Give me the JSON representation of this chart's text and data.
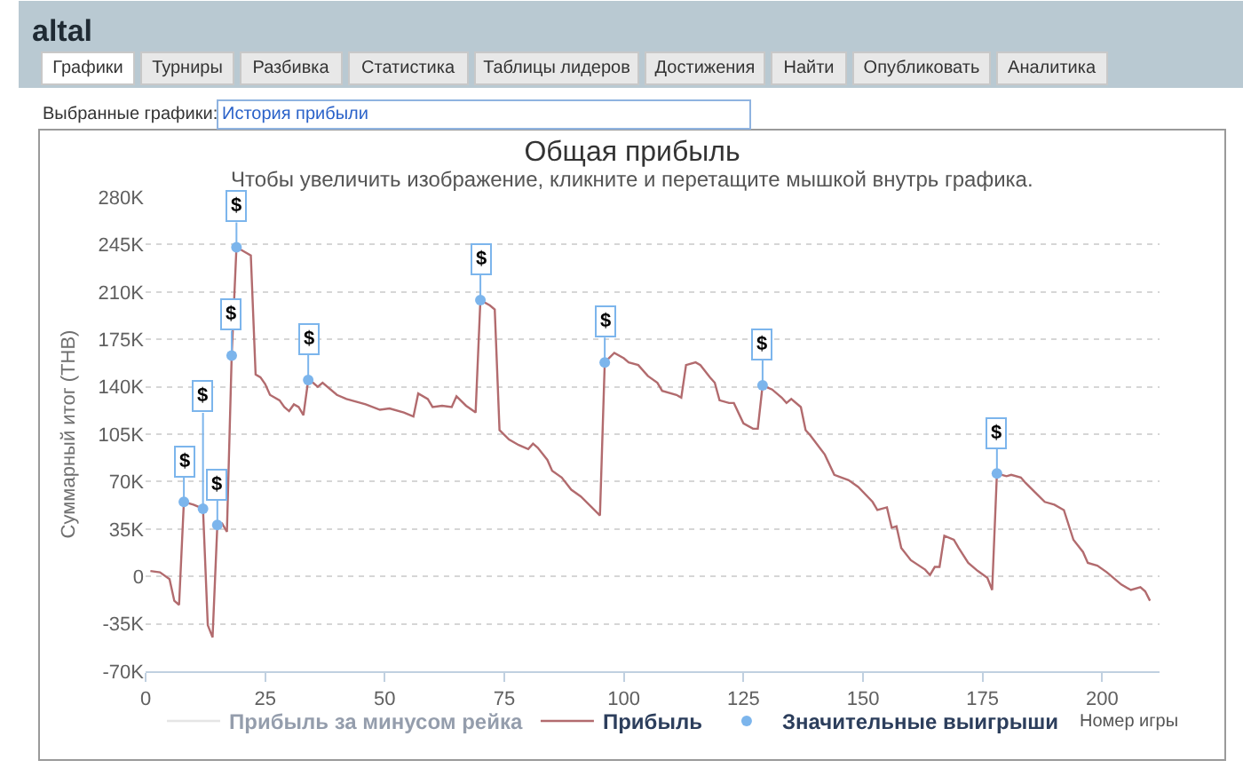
{
  "chart_data": {
    "type": "line",
    "title": "Общая прибыль",
    "subtitle": "Чтобы увеличить изображение, кликните и перетащите мышкой внутрь графика.",
    "xlabel": "Номер игры",
    "ylabel": "Суммарный итог (THB)",
    "xlim": [
      0,
      212
    ],
    "xticks": [
      0,
      25,
      50,
      75,
      100,
      125,
      150,
      175,
      200
    ],
    "ylim": [
      -70000,
      280000
    ],
    "yticks": [
      {
        "value": -70000,
        "label": "-70K"
      },
      {
        "value": -35000,
        "label": "-35K"
      },
      0,
      {
        "value": 35000,
        "label": "35K"
      },
      {
        "value": 70000,
        "label": "70K"
      },
      {
        "value": 105000,
        "label": "105K"
      },
      {
        "value": 140000,
        "label": "140K"
      },
      {
        "value": 175000,
        "label": "175K"
      },
      {
        "value": 210000,
        "label": "210K"
      },
      {
        "value": 245000,
        "label": "245K"
      },
      {
        "value": 280000,
        "label": "280K"
      }
    ],
    "grid": "y",
    "legend": "bottom",
    "series": [
      {
        "name": "Прибыль за минусом рейка",
        "color": "#cccccc"
      },
      {
        "name": "Прибыль",
        "color": "#b26b6e",
        "x": [
          1,
          3,
          5,
          6,
          7,
          8,
          10,
          12,
          13,
          14,
          15,
          16,
          17,
          18,
          19,
          20,
          22,
          23,
          24,
          25,
          26,
          28,
          29,
          30,
          31,
          32,
          33,
          34,
          35,
          36,
          37,
          40,
          42,
          44,
          46,
          49,
          51,
          54,
          56,
          57,
          59,
          60,
          62,
          64,
          65,
          67,
          69,
          70,
          72,
          73,
          74,
          76,
          78,
          80,
          81,
          82,
          84,
          85,
          87,
          89,
          91,
          93,
          95,
          96,
          98,
          100,
          101,
          103,
          105,
          107,
          108,
          111,
          112,
          113,
          115,
          116,
          118,
          119,
          120,
          122,
          123,
          125,
          127,
          128,
          129,
          131,
          133,
          134,
          135,
          137,
          138,
          139,
          142,
          144,
          147,
          149,
          152,
          153,
          155,
          156,
          157,
          158,
          160,
          163,
          164,
          165,
          166,
          167,
          169,
          170,
          172,
          174,
          176,
          177,
          178,
          180,
          181,
          183,
          184,
          186,
          188,
          190,
          192,
          194,
          196,
          197,
          199,
          201,
          204,
          206,
          208,
          209,
          210
        ],
        "values": [
          4000,
          3000,
          -2000,
          -18000,
          -21000,
          55000,
          53000,
          50000,
          -36000,
          -45000,
          38000,
          39000,
          33000,
          163000,
          243000,
          241000,
          237000,
          149000,
          147000,
          142000,
          134000,
          130000,
          125000,
          122000,
          127000,
          125000,
          119000,
          145000,
          143000,
          140000,
          143000,
          134000,
          131000,
          129000,
          127000,
          123000,
          124000,
          121000,
          118000,
          135000,
          131000,
          125000,
          126000,
          125000,
          133000,
          126000,
          121000,
          204000,
          200000,
          197000,
          108000,
          101000,
          97000,
          94000,
          98000,
          95000,
          86000,
          78000,
          73000,
          64000,
          59000,
          52000,
          45000,
          158000,
          165000,
          161000,
          158000,
          156000,
          148000,
          143000,
          137000,
          134000,
          132000,
          156000,
          158000,
          156000,
          147000,
          143000,
          130000,
          128000,
          128000,
          113000,
          109000,
          109000,
          141000,
          138000,
          132000,
          128000,
          131000,
          125000,
          108000,
          104000,
          90000,
          75000,
          71000,
          66000,
          55000,
          49000,
          51000,
          36000,
          37000,
          21000,
          12000,
          5000,
          1000,
          7000,
          7000,
          30000,
          27000,
          21000,
          10000,
          4000,
          -1000,
          -10000,
          76000,
          74000,
          75000,
          73000,
          69000,
          62000,
          55000,
          53000,
          49000,
          27000,
          18000,
          10000,
          8000,
          3000,
          -6000,
          -10000,
          -8000,
          -11000,
          -18000
        ]
      },
      {
        "name": "Значительные выигрыши",
        "type": "scatter",
        "marker": "circle",
        "color": "#7cb5ec",
        "x": [
          8,
          12,
          15,
          18,
          19,
          34,
          70,
          96,
          129,
          178
        ],
        "values": [
          55000,
          50000,
          38000,
          163000,
          243000,
          145000,
          204000,
          158000,
          141000,
          76000
        ],
        "value_labels": [
          "$",
          "$",
          "$",
          "$",
          "$",
          "$",
          "$",
          "$",
          "$",
          "$"
        ]
      }
    ],
    "annotations": [
      "altal",
      "Графики",
      "Турниры",
      "Разбивка",
      "Статистика",
      "Таблицы лидеров",
      "Достижения",
      "Найти",
      "Опубликовать",
      "Аналитика",
      "Выбранные графики:",
      "История прибыли"
    ]
  }
}
